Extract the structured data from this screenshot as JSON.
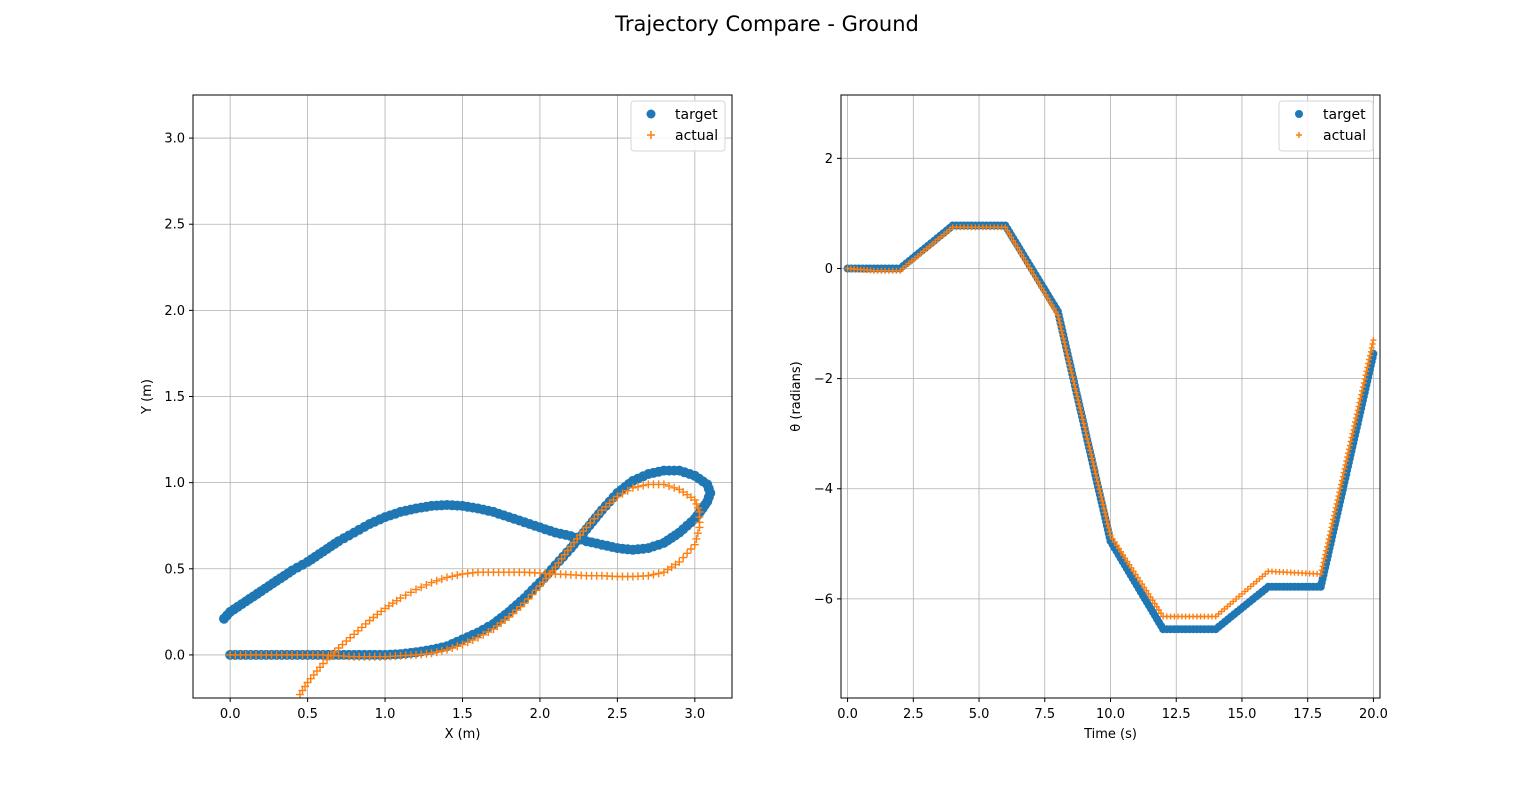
{
  "title": "Trajectory Compare - Ground",
  "colors": {
    "target": "#1f77b4",
    "actual": "#ff7f0e",
    "grid": "#b0b0b0"
  },
  "chart_data": [
    {
      "type": "scatter",
      "xlabel": "X (m)",
      "ylabel": "Y (m)",
      "xlim": [
        -0.24,
        3.24
      ],
      "ylim": [
        -0.25,
        3.25
      ],
      "xticks": [
        0.0,
        0.5,
        1.0,
        1.5,
        2.0,
        2.5,
        3.0
      ],
      "xtick_labels": [
        "0.0",
        "0.5",
        "1.0",
        "1.5",
        "2.0",
        "2.5",
        "3.0"
      ],
      "yticks": [
        0.0,
        0.5,
        1.0,
        1.5,
        2.0,
        2.5,
        3.0
      ],
      "ytick_labels": [
        "0.0",
        "0.5",
        "1.0",
        "1.5",
        "2.0",
        "2.5",
        "3.0"
      ],
      "grid": true,
      "legend": "top-right",
      "series": [
        {
          "name": "target",
          "marker": "circle",
          "x": [
            -0.04,
            0.0,
            0.1,
            0.2,
            0.3,
            0.4,
            0.5,
            0.6,
            0.7,
            0.8,
            0.9,
            1.0,
            1.1,
            1.2,
            1.3,
            1.4,
            1.5,
            1.6,
            1.7,
            1.8,
            1.9,
            2.0,
            2.1,
            2.2,
            2.3,
            2.4,
            2.5,
            2.6,
            2.7,
            2.8,
            2.9,
            3.0,
            3.05,
            3.08,
            3.1,
            3.08,
            3.0,
            2.9,
            2.8,
            2.7,
            2.6,
            2.5,
            2.4,
            2.3,
            2.2,
            2.1,
            2.0,
            1.9,
            1.8,
            1.7,
            1.6,
            1.5,
            1.4,
            1.3,
            1.2,
            1.1,
            1.0,
            0.8,
            0.6,
            0.4,
            0.2,
            0.0
          ],
          "y": [
            0.21,
            0.25,
            0.31,
            0.37,
            0.43,
            0.49,
            0.54,
            0.6,
            0.66,
            0.71,
            0.76,
            0.8,
            0.83,
            0.85,
            0.865,
            0.87,
            0.865,
            0.85,
            0.83,
            0.8,
            0.77,
            0.74,
            0.71,
            0.69,
            0.66,
            0.64,
            0.62,
            0.61,
            0.62,
            0.65,
            0.71,
            0.79,
            0.85,
            0.89,
            0.94,
            0.99,
            1.04,
            1.07,
            1.07,
            1.05,
            1.01,
            0.94,
            0.84,
            0.73,
            0.62,
            0.52,
            0.42,
            0.33,
            0.25,
            0.18,
            0.13,
            0.09,
            0.05,
            0.03,
            0.015,
            0.005,
            0.0,
            0.0,
            0.0,
            0.0,
            0.0,
            0.0
          ]
        },
        {
          "name": "actual",
          "marker": "plus",
          "x": [
            0.0,
            0.2,
            0.4,
            0.6,
            0.8,
            1.0,
            1.2,
            1.3,
            1.4,
            1.5,
            1.6,
            1.7,
            1.8,
            1.9,
            2.0,
            2.1,
            2.2,
            2.3,
            2.4,
            2.5,
            2.6,
            2.7,
            2.8,
            2.9,
            3.0,
            3.03,
            3.03,
            3.0,
            2.9,
            2.8,
            2.7,
            2.6,
            2.5,
            2.4,
            2.3,
            2.2,
            2.1,
            2.0,
            1.9,
            1.8,
            1.7,
            1.6,
            1.5,
            1.4,
            1.3,
            1.2,
            1.1,
            1.0,
            0.9,
            0.8,
            0.7,
            0.6,
            0.5,
            0.45
          ],
          "y": [
            0.0,
            0.0,
            0.0,
            0.0,
            -0.01,
            -0.01,
            0.0,
            0.01,
            0.03,
            0.06,
            0.1,
            0.15,
            0.22,
            0.3,
            0.4,
            0.51,
            0.63,
            0.74,
            0.84,
            0.92,
            0.97,
            0.99,
            0.99,
            0.96,
            0.9,
            0.83,
            0.74,
            0.64,
            0.54,
            0.48,
            0.46,
            0.455,
            0.455,
            0.46,
            0.46,
            0.465,
            0.47,
            0.475,
            0.48,
            0.48,
            0.48,
            0.48,
            0.47,
            0.45,
            0.42,
            0.38,
            0.33,
            0.27,
            0.2,
            0.12,
            0.04,
            -0.05,
            -0.16,
            -0.23
          ]
        }
      ]
    },
    {
      "type": "scatter",
      "xlabel": "Time (s)",
      "ylabel": "θ (radians)",
      "xlim": [
        -0.25,
        20.25
      ],
      "ylim": [
        -7.8,
        3.15
      ],
      "xticks": [
        0.0,
        2.5,
        5.0,
        7.5,
        10.0,
        12.5,
        15.0,
        17.5,
        20.0
      ],
      "xtick_labels": [
        "0.0",
        "2.5",
        "5.0",
        "7.5",
        "10.0",
        "12.5",
        "15.0",
        "17.5",
        "20.0"
      ],
      "yticks": [
        -6,
        -4,
        -2,
        0,
        2
      ],
      "ytick_labels": [
        "−6",
        "−4",
        "−2",
        "0",
        "2"
      ],
      "grid": true,
      "legend": "top-right",
      "series": [
        {
          "name": "target",
          "marker": "circle",
          "x": [
            0.0,
            2.0,
            4.0,
            6.0,
            8.0,
            10.0,
            12.0,
            14.0,
            16.0,
            18.0,
            20.0
          ],
          "y": [
            0.0,
            0.0,
            0.78,
            0.78,
            -0.78,
            -4.95,
            -6.55,
            -6.55,
            -5.78,
            -5.78,
            -1.55
          ]
        },
        {
          "name": "actual",
          "marker": "plus",
          "x": [
            0.0,
            0.5,
            1.0,
            2.0,
            4.0,
            6.0,
            8.0,
            10.0,
            12.0,
            14.0,
            16.0,
            18.0,
            20.0
          ],
          "y": [
            0.0,
            -0.02,
            -0.04,
            -0.04,
            0.75,
            0.75,
            -0.85,
            -4.85,
            -6.32,
            -6.32,
            -5.5,
            -5.55,
            -1.3
          ]
        }
      ]
    }
  ]
}
